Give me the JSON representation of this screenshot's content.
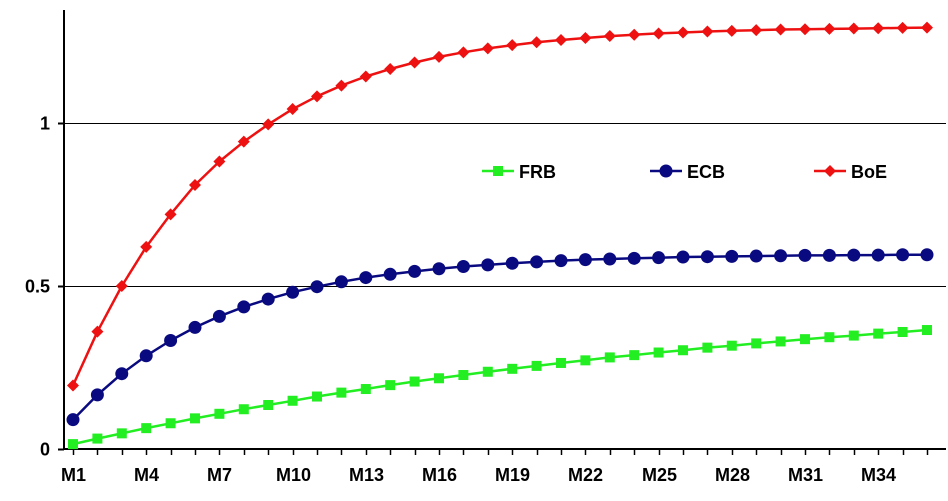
{
  "chart_data": {
    "type": "line",
    "title": "",
    "xlabel": "",
    "ylabel": "",
    "categories": [
      "M1",
      "M2",
      "M3",
      "M4",
      "M5",
      "M6",
      "M7",
      "M8",
      "M9",
      "M10",
      "M11",
      "M12",
      "M13",
      "M14",
      "M15",
      "M16",
      "M17",
      "M18",
      "M19",
      "M20",
      "M21",
      "M22",
      "M23",
      "M24",
      "M25",
      "M26",
      "M27",
      "M28",
      "M29",
      "M30",
      "M31",
      "M32",
      "M33",
      "M34",
      "M35",
      "M36"
    ],
    "x_tick_labels": [
      "M1",
      "M4",
      "M7",
      "M10",
      "M13",
      "M16",
      "M19",
      "M22",
      "M25",
      "M28",
      "M31",
      "M34"
    ],
    "y_tick_labels": [
      "0",
      "0.5",
      "1"
    ],
    "y_ticks": [
      0,
      0.5,
      1
    ],
    "ylim": [
      0,
      1.35
    ],
    "grid": true,
    "legend_position": "right, inside plot",
    "series": [
      {
        "name": "FRB",
        "color": "#22ee22",
        "marker": "square",
        "values": [
          0.015,
          0.032,
          0.048,
          0.064,
          0.079,
          0.094,
          0.108,
          0.122,
          0.135,
          0.148,
          0.161,
          0.173,
          0.184,
          0.196,
          0.207,
          0.217,
          0.227,
          0.237,
          0.246,
          0.255,
          0.264,
          0.272,
          0.281,
          0.288,
          0.296,
          0.303,
          0.311,
          0.317,
          0.324,
          0.33,
          0.337,
          0.343,
          0.348,
          0.354,
          0.359,
          0.365
        ]
      },
      {
        "name": "ECB",
        "color": "#0a0a80",
        "marker": "circle",
        "values": [
          0.09,
          0.166,
          0.231,
          0.286,
          0.333,
          0.373,
          0.407,
          0.436,
          0.46,
          0.481,
          0.498,
          0.513,
          0.526,
          0.536,
          0.545,
          0.553,
          0.56,
          0.565,
          0.57,
          0.574,
          0.578,
          0.581,
          0.583,
          0.585,
          0.587,
          0.589,
          0.59,
          0.591,
          0.592,
          0.593,
          0.594,
          0.594,
          0.595,
          0.595,
          0.596,
          0.596
        ]
      },
      {
        "name": "BoE",
        "color": "#ee1111",
        "marker": "diamond",
        "values": [
          0.195,
          0.36,
          0.5,
          0.62,
          0.72,
          0.81,
          0.882,
          0.943,
          0.996,
          1.043,
          1.082,
          1.115,
          1.143,
          1.166,
          1.186,
          1.203,
          1.217,
          1.229,
          1.239,
          1.248,
          1.255,
          1.261,
          1.267,
          1.271,
          1.275,
          1.278,
          1.281,
          1.283,
          1.285,
          1.287,
          1.288,
          1.289,
          1.29,
          1.291,
          1.292,
          1.293
        ]
      }
    ]
  }
}
